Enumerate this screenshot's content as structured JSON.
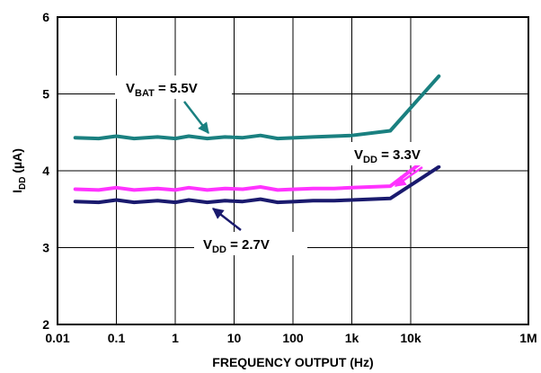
{
  "chart_data": {
    "type": "line",
    "title": "",
    "xlabel": "FREQUENCY OUTPUT (Hz)",
    "ylabel": "I_DD (µA)",
    "ylabel_parts": {
      "main": "I",
      "sub": "DD",
      "rest": " (µA)"
    },
    "x_scale": "log",
    "xlim": [
      0.01,
      1000000
    ],
    "ylim": [
      2,
      6
    ],
    "x_ticks": [
      0.01,
      0.1,
      1,
      10,
      100,
      1000,
      10000,
      1000000
    ],
    "x_tick_labels": [
      "0.01",
      "0.1",
      "1",
      "10",
      "100",
      "1k",
      "10k",
      "1M"
    ],
    "y_ticks": [
      2,
      3,
      4,
      5,
      6
    ],
    "y_tick_labels": [
      "2",
      "3",
      "4",
      "5",
      "6"
    ],
    "grid": true,
    "series": [
      {
        "name": "VBAT = 5.5V",
        "label_parts": {
          "main": "V",
          "sub": "BAT",
          "rest": " = 5.5V"
        },
        "color": "#1a8080",
        "x": [
          0.02,
          0.05,
          0.1,
          0.2,
          0.5,
          1,
          1.7,
          3.5,
          7,
          14,
          28,
          55,
          110,
          220,
          500,
          1000,
          4500,
          30000
        ],
        "y": [
          4.43,
          4.42,
          4.45,
          4.42,
          4.44,
          4.42,
          4.45,
          4.42,
          4.44,
          4.43,
          4.46,
          4.42,
          4.43,
          4.44,
          4.45,
          4.46,
          4.52,
          5.23
        ]
      },
      {
        "name": "VDD = 3.3V",
        "label_parts": {
          "main": "V",
          "sub": "DD",
          "rest": " = 3.3V"
        },
        "color": "#ff33ff",
        "x": [
          0.02,
          0.05,
          0.1,
          0.2,
          0.5,
          1,
          1.7,
          3.5,
          7,
          14,
          28,
          55,
          110,
          220,
          500,
          1000,
          4500,
          30000
        ],
        "y": [
          3.76,
          3.75,
          3.78,
          3.75,
          3.77,
          3.75,
          3.78,
          3.75,
          3.77,
          3.76,
          3.79,
          3.75,
          3.76,
          3.77,
          3.77,
          3.78,
          3.8,
          4.28
        ]
      },
      {
        "name": "VDD = 2.7V",
        "label_parts": {
          "main": "V",
          "sub": "DD",
          "rest": " = 2.7V"
        },
        "color": "#1a1a6e",
        "x": [
          0.02,
          0.05,
          0.1,
          0.2,
          0.5,
          1,
          1.7,
          3.5,
          7,
          14,
          28,
          55,
          110,
          220,
          500,
          1000,
          4500,
          30000
        ],
        "y": [
          3.6,
          3.59,
          3.62,
          3.59,
          3.61,
          3.59,
          3.62,
          3.59,
          3.61,
          3.6,
          3.63,
          3.59,
          3.6,
          3.61,
          3.61,
          3.62,
          3.64,
          4.05
        ]
      }
    ]
  }
}
